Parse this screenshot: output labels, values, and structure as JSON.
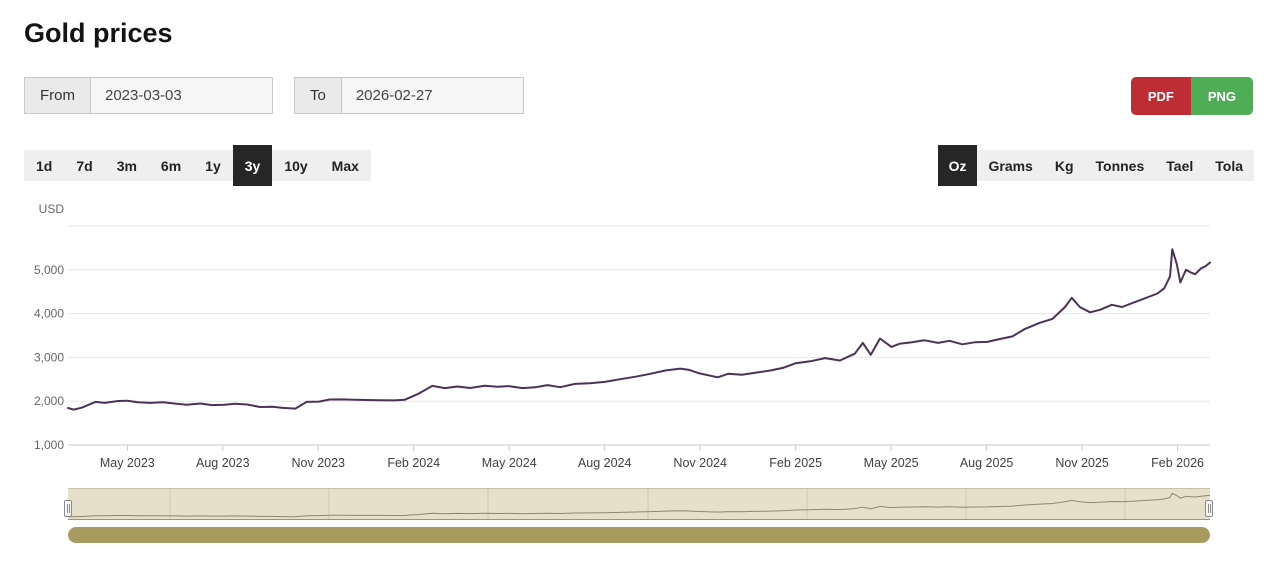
{
  "title": "Gold prices",
  "controls": {
    "from_label": "From",
    "from_value": "2023-03-03",
    "to_label": "To",
    "to_value": "2026-02-27",
    "pdf_label": "PDF",
    "png_label": "PNG"
  },
  "range_selector": {
    "options": [
      "1d",
      "7d",
      "3m",
      "6m",
      "1y",
      "3y",
      "10y",
      "Max"
    ],
    "selected": "3y"
  },
  "unit_selector": {
    "options": [
      "Oz",
      "Grams",
      "Kg",
      "Tonnes",
      "Tael",
      "Tola"
    ],
    "selected": "Oz"
  },
  "colors": {
    "pdf_button": "#be2c34",
    "png_button": "#4fad55",
    "selected_tab_bg": "#262626",
    "toolbar_bg": "#efefef",
    "series_line": "#4c3257",
    "gridline": "#e7e7e7",
    "axis_line": "#c9c9c9",
    "axis_label": "#666666",
    "x_label": "#404040",
    "navigator_mask": "#e6e0ca",
    "navigator_gridline": "#cfc9b0",
    "navigator_line": "#8d8772",
    "scrollbar": "#a89b60"
  },
  "chart_data": {
    "type": "line",
    "currency": "USD",
    "unit": "Oz",
    "x_range": [
      "2023-03-03",
      "2026-02-27"
    ],
    "grid": true,
    "legend": false,
    "y_axis": {
      "title": "USD",
      "labels": [
        "1,000",
        "2,000",
        "3,000",
        "4,000",
        "5,000"
      ],
      "values": [
        1000,
        2000,
        3000,
        4000,
        5000
      ],
      "range": [
        1000,
        6000
      ]
    },
    "x_axis": {
      "tick_labels": [
        "May 2023",
        "Aug 2023",
        "Nov 2023",
        "Feb 2024",
        "May 2024",
        "Aug 2024",
        "Nov 2024",
        "Feb 2025",
        "May 2025",
        "Aug 2025",
        "Nov 2025",
        "Feb 2026"
      ]
    },
    "series": [
      {
        "name": "gold-price-usd-per-oz",
        "points_format": "[fraction_of_date_range, usd_value]",
        "points": [
          [
            0.0,
            1845
          ],
          [
            0.005,
            1808
          ],
          [
            0.012,
            1852
          ],
          [
            0.024,
            1985
          ],
          [
            0.032,
            1962
          ],
          [
            0.044,
            2005
          ],
          [
            0.052,
            2012
          ],
          [
            0.061,
            1975
          ],
          [
            0.072,
            1962
          ],
          [
            0.083,
            1978
          ],
          [
            0.094,
            1945
          ],
          [
            0.104,
            1920
          ],
          [
            0.116,
            1948
          ],
          [
            0.126,
            1912
          ],
          [
            0.137,
            1918
          ],
          [
            0.146,
            1942
          ],
          [
            0.157,
            1925
          ],
          [
            0.168,
            1868
          ],
          [
            0.179,
            1875
          ],
          [
            0.188,
            1848
          ],
          [
            0.199,
            1832
          ],
          [
            0.209,
            1985
          ],
          [
            0.22,
            1992
          ],
          [
            0.229,
            2038
          ],
          [
            0.24,
            2042
          ],
          [
            0.251,
            2032
          ],
          [
            0.262,
            2028
          ],
          [
            0.273,
            2022
          ],
          [
            0.286,
            2018
          ],
          [
            0.295,
            2035
          ],
          [
            0.306,
            2160
          ],
          [
            0.319,
            2350
          ],
          [
            0.33,
            2300
          ],
          [
            0.341,
            2335
          ],
          [
            0.352,
            2302
          ],
          [
            0.365,
            2355
          ],
          [
            0.376,
            2330
          ],
          [
            0.386,
            2345
          ],
          [
            0.398,
            2300
          ],
          [
            0.409,
            2318
          ],
          [
            0.42,
            2368
          ],
          [
            0.431,
            2320
          ],
          [
            0.444,
            2395
          ],
          [
            0.457,
            2410
          ],
          [
            0.47,
            2440
          ],
          [
            0.483,
            2500
          ],
          [
            0.497,
            2560
          ],
          [
            0.51,
            2625
          ],
          [
            0.523,
            2700
          ],
          [
            0.536,
            2745
          ],
          [
            0.544,
            2715
          ],
          [
            0.553,
            2635
          ],
          [
            0.569,
            2545
          ],
          [
            0.578,
            2625
          ],
          [
            0.59,
            2605
          ],
          [
            0.601,
            2645
          ],
          [
            0.615,
            2700
          ],
          [
            0.626,
            2760
          ],
          [
            0.637,
            2865
          ],
          [
            0.65,
            2910
          ],
          [
            0.663,
            2985
          ],
          [
            0.676,
            2930
          ],
          [
            0.689,
            3085
          ],
          [
            0.696,
            3330
          ],
          [
            0.703,
            3060
          ],
          [
            0.711,
            3432
          ],
          [
            0.721,
            3240
          ],
          [
            0.728,
            3310
          ],
          [
            0.739,
            3345
          ],
          [
            0.75,
            3390
          ],
          [
            0.762,
            3330
          ],
          [
            0.772,
            3380
          ],
          [
            0.783,
            3300
          ],
          [
            0.794,
            3345
          ],
          [
            0.805,
            3355
          ],
          [
            0.816,
            3420
          ],
          [
            0.827,
            3480
          ],
          [
            0.838,
            3650
          ],
          [
            0.851,
            3790
          ],
          [
            0.862,
            3880
          ],
          [
            0.873,
            4150
          ],
          [
            0.879,
            4360
          ],
          [
            0.886,
            4150
          ],
          [
            0.895,
            4030
          ],
          [
            0.904,
            4090
          ],
          [
            0.914,
            4200
          ],
          [
            0.923,
            4150
          ],
          [
            0.934,
            4260
          ],
          [
            0.946,
            4380
          ],
          [
            0.954,
            4460
          ],
          [
            0.96,
            4580
          ],
          [
            0.965,
            4850
          ],
          [
            0.967,
            5470
          ],
          [
            0.971,
            5120
          ],
          [
            0.974,
            4710
          ],
          [
            0.979,
            5000
          ],
          [
            0.983,
            4940
          ],
          [
            0.987,
            4900
          ],
          [
            0.992,
            5030
          ],
          [
            0.996,
            5080
          ],
          [
            1.0,
            5165
          ]
        ]
      }
    ],
    "navigator": {
      "selected_range": [
        0,
        1
      ],
      "value_range": [
        1700,
        5600
      ]
    }
  }
}
